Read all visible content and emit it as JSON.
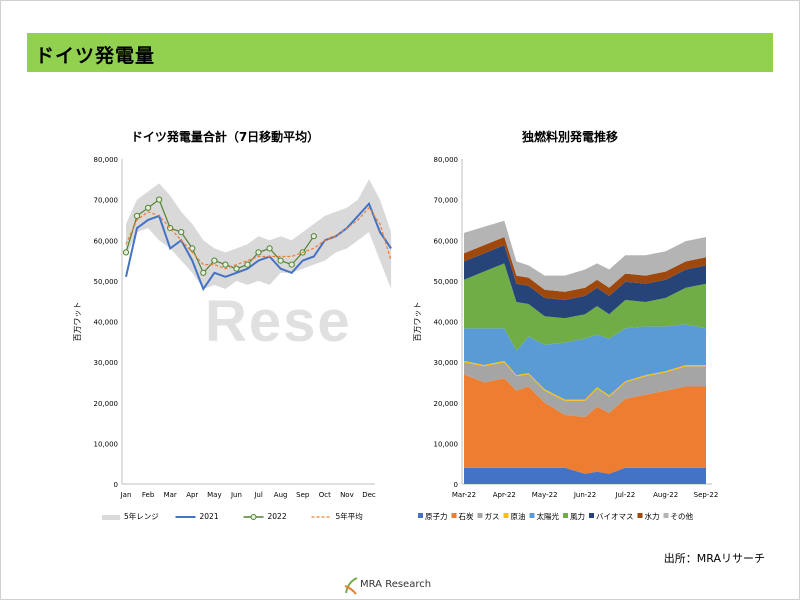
{
  "page": {
    "title": "ドイツ発電量",
    "source": "出所：MRAリサーチ",
    "logo_text": "MRA Research",
    "watermark": "Rese"
  },
  "chart_data": [
    {
      "type": "line",
      "title": "ドイツ発電量合計（7日移動平均）",
      "ylabel": "百万ワット",
      "ylim": [
        0,
        80000
      ],
      "yticks": [
        "0",
        "10,000",
        "20,000",
        "30,000",
        "40,000",
        "50,000",
        "60,000",
        "70,000",
        "80,000"
      ],
      "xticks": [
        "Jan",
        "Feb",
        "Mar",
        "Apr",
        "May",
        "Jun",
        "Jul",
        "Aug",
        "Sep",
        "Oct",
        "Nov",
        "Dec"
      ],
      "x_months": [
        0,
        0.5,
        1,
        1.5,
        2,
        2.5,
        3,
        3.5,
        4,
        4.5,
        5,
        5.5,
        6,
        6.5,
        7,
        7.5,
        8,
        8.5,
        9,
        9.5,
        10,
        10.5,
        11,
        11.5,
        12
      ],
      "series": [
        {
          "name": "5年レンジ",
          "kind": "range",
          "color": "#d9d9d9",
          "low": [
            56000,
            62000,
            63000,
            60000,
            58000,
            55000,
            52000,
            48000,
            49000,
            48000,
            50000,
            49000,
            50000,
            49000,
            52000,
            52000,
            53000,
            54000,
            55000,
            57000,
            58000,
            60000,
            62000,
            55000,
            48000
          ],
          "high": [
            64000,
            70000,
            72000,
            74000,
            71000,
            67000,
            64000,
            60000,
            58000,
            57000,
            58000,
            59000,
            61000,
            60000,
            61000,
            60000,
            62000,
            64000,
            66000,
            67000,
            68000,
            70000,
            75000,
            70000,
            62000
          ]
        },
        {
          "name": "2021",
          "kind": "line",
          "color": "#4472c4",
          "values": [
            51000,
            63000,
            65000,
            66000,
            58000,
            60000,
            55000,
            48000,
            52000,
            51000,
            52000,
            53000,
            55000,
            56000,
            53000,
            52000,
            55000,
            56000,
            60000,
            61000,
            63000,
            66000,
            69000,
            62000,
            58000
          ]
        },
        {
          "name": "2022",
          "kind": "marker-line",
          "color": "#548235",
          "values": [
            57000,
            66000,
            68000,
            70000,
            63000,
            62000,
            58000,
            52000,
            55000,
            54000,
            53000,
            54000,
            57000,
            58000,
            55000,
            54000,
            57000,
            61000
          ]
        },
        {
          "name": "5年平均",
          "kind": "dashed",
          "color": "#ed7d31",
          "values": [
            59000,
            65000,
            67000,
            66000,
            63000,
            60000,
            57000,
            54000,
            54000,
            53000,
            54000,
            55000,
            56000,
            56000,
            56000,
            56000,
            57000,
            58000,
            60000,
            61000,
            63000,
            65000,
            68000,
            64000,
            55000
          ]
        }
      ]
    },
    {
      "type": "area",
      "stacked": true,
      "title": "独燃料別発電推移",
      "ylabel": "百万ワット",
      "ylim": [
        0,
        80000
      ],
      "yticks": [
        "0",
        "10,000",
        "20,000",
        "30,000",
        "40,000",
        "50,000",
        "60,000",
        "70,000",
        "80,000"
      ],
      "xticks": [
        "Mar-22",
        "Apr-22",
        "May-22",
        "Jun-22",
        "Jul-22",
        "Aug-22",
        "Sep-22"
      ],
      "x_months": [
        0,
        0.5,
        1,
        1.3,
        1.6,
        2,
        2.5,
        3,
        3.3,
        3.6,
        4,
        4.5,
        5,
        5.5,
        6
      ],
      "series": [
        {
          "name": "原子力",
          "color": "#4472c4",
          "values": [
            4000,
            4000,
            4000,
            4000,
            4000,
            4000,
            4000,
            2500,
            3000,
            2500,
            4000,
            4000,
            4000,
            4000,
            4000
          ]
        },
        {
          "name": "石炭",
          "color": "#ed7d31",
          "values": [
            23000,
            21000,
            22000,
            19000,
            20000,
            16000,
            13000,
            14000,
            16000,
            15000,
            17000,
            18000,
            19000,
            20000,
            20000
          ]
        },
        {
          "name": "ガス",
          "color": "#a5a5a5",
          "values": [
            3000,
            4000,
            4000,
            3500,
            3000,
            3000,
            3500,
            4000,
            4500,
            4000,
            4000,
            4500,
            4500,
            5000,
            5000
          ]
        },
        {
          "name": "原油",
          "color": "#ffc000",
          "values": [
            300,
            300,
            300,
            300,
            300,
            300,
            300,
            300,
            300,
            300,
            300,
            300,
            300,
            300,
            300
          ]
        },
        {
          "name": "太陽光",
          "color": "#5b9bd5",
          "values": [
            8000,
            9000,
            8000,
            6000,
            9000,
            11000,
            14000,
            15000,
            13000,
            14000,
            13000,
            12000,
            11000,
            10000,
            9000
          ]
        },
        {
          "name": "風力",
          "color": "#70ad47",
          "values": [
            12000,
            14000,
            16000,
            12000,
            8000,
            7000,
            6000,
            6000,
            7000,
            6000,
            7000,
            6000,
            7000,
            9000,
            11000
          ]
        },
        {
          "name": "バイオマス",
          "color": "#264478",
          "values": [
            4500,
            4500,
            4500,
            4500,
            4500,
            4500,
            4500,
            4500,
            4500,
            4500,
            4500,
            4500,
            4500,
            4500,
            4500
          ]
        },
        {
          "name": "水力",
          "color": "#9e480e",
          "values": [
            2000,
            2000,
            2000,
            2000,
            2000,
            2000,
            2000,
            2000,
            2000,
            2000,
            2000,
            2000,
            2000,
            2000,
            2000
          ]
        },
        {
          "name": "その他",
          "color": "#b4b4b4",
          "values": [
            5000,
            4500,
            4000,
            3500,
            3000,
            3500,
            4000,
            4500,
            4000,
            4500,
            4500,
            5000,
            5000,
            5000,
            5000
          ]
        }
      ]
    }
  ]
}
